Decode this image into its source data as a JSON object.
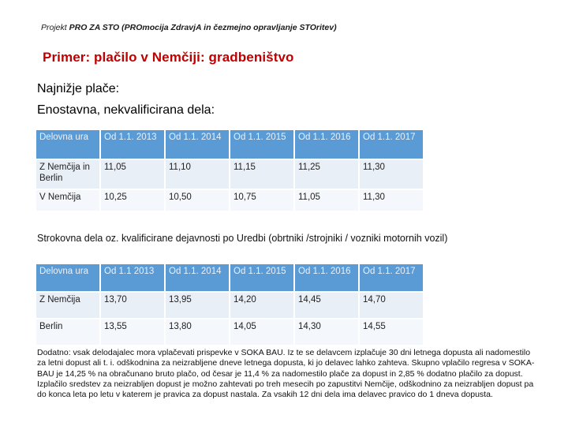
{
  "header": {
    "project_prefix": "Projekt",
    "project_name": "PRO ZA STO (PROmocija ZdravjA in čezmejno opravljanje STOritev)"
  },
  "slide": {
    "title": "Primer: plačilo v Nemčiji: gradbeništvo",
    "heading1": "Najnižje plače:",
    "heading2": "Enostavna, nekvalificirana dela:"
  },
  "table1": {
    "headers": [
      "Delovna ura",
      "Od 1.1. 2013",
      "Od 1.1. 2014",
      "Od 1.1. 2015",
      "Od 1.1. 2016",
      "Od 1.1. 2017"
    ],
    "rows": [
      [
        "Z Nemčija in Berlin",
        "11,05",
        "11,10",
        "11,15",
        "11,25",
        "11,30"
      ],
      [
        "V Nemčija",
        "10,25",
        "10,50",
        "10,75",
        "11,05",
        "11,30"
      ]
    ]
  },
  "subheading": "Strokovna dela oz. kvalificirane dejavnosti po Uredbi (obrtniki /strojniki / vozniki motornih vozil)",
  "table2": {
    "headers": [
      "Delovna ura",
      "Od 1.1 2013",
      "Od 1.1. 2014",
      "Od 1.1. 2015",
      "Od 1.1. 2016",
      "Od 1.1. 2017"
    ],
    "rows": [
      [
        "Z Nemčija",
        "13,70",
        "13,95",
        "14,20",
        "14,45",
        "14,70"
      ],
      [
        "Berlin",
        "13,55",
        "13,80",
        "14,05",
        "14,30",
        "14,55"
      ]
    ]
  },
  "note": "Dodatno: vsak delodajalec mora vplačevati prispevke v SOKA BAU. Iz te se delavcem izplačuje 30 dni letnega dopusta ali nadomestilo za letni dopust ali t. i. odškodnina za neizrabljene dneve letnega dopusta, ki jo delavec lahko zahteva. Skupno vplačilo regresa v SOKA-BAU je 14,25 % na obračunano bruto plačo, od česar je 11,4 % za nadomestilo plače za dopust in 2,85 % dodatno plačilo za dopust. Izplačilo sredstev za neizrabljen dopust je možno zahtevati po treh mesecih po zapustitvi Nemčije, odškodnino za neizrabljen dopust pa do konca leta po letu v katerem je pravica za dopust nastala. Za vsakih 12 dni dela ima delavec pravico do 1 dneva dopusta."
}
